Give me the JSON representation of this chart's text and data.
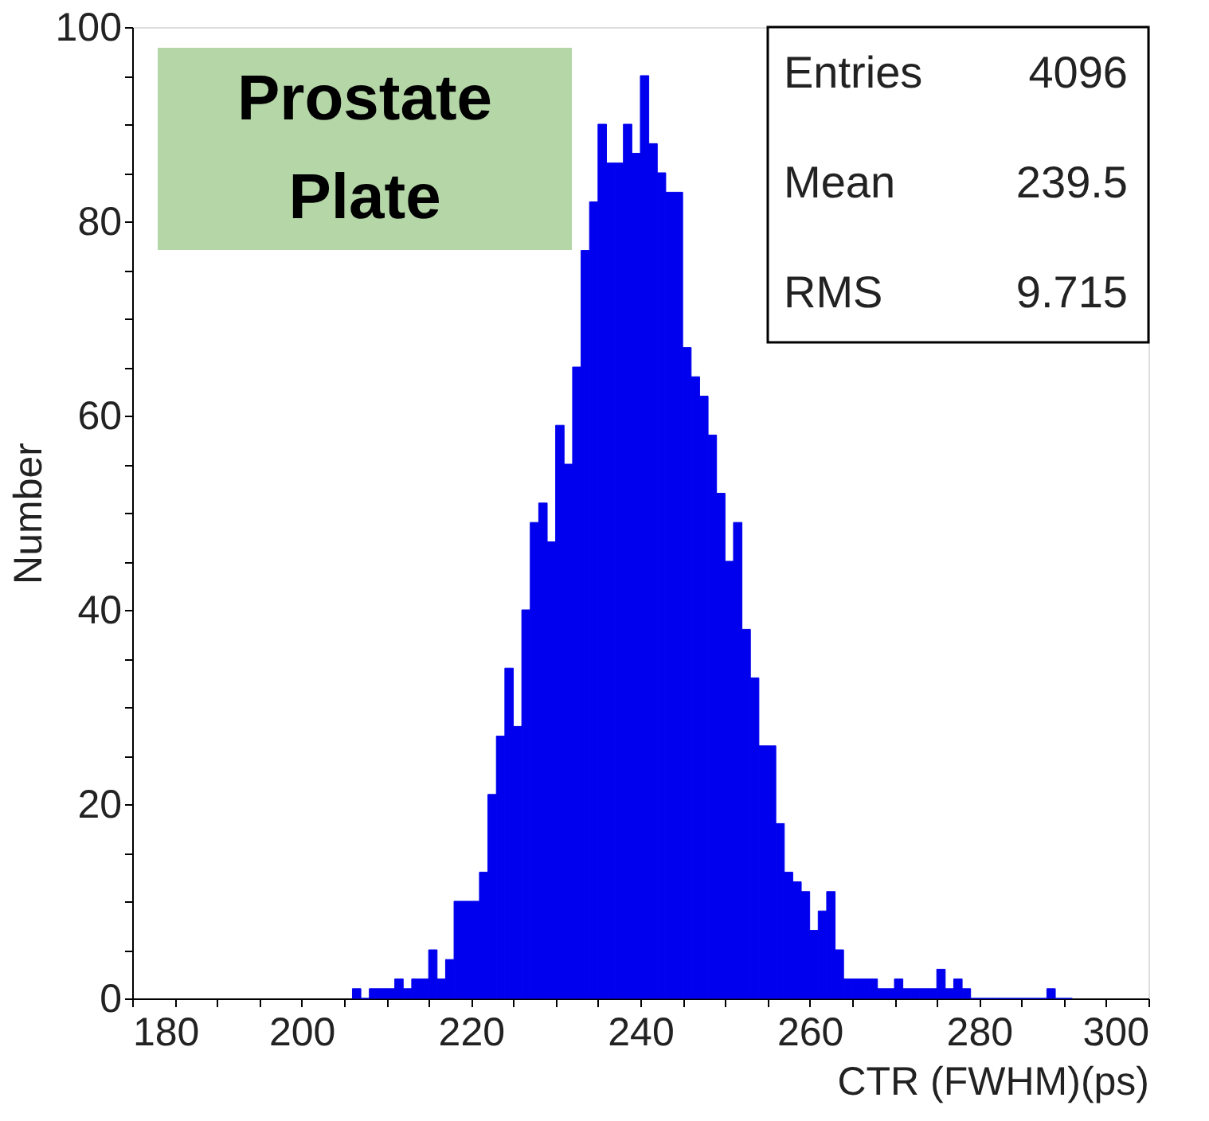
{
  "chart_data": {
    "type": "histogram",
    "xlabel": "CTR (FWHM)(ps)",
    "ylabel": "Number",
    "annotations": [
      "Prostate\nPlate",
      "Entries",
      "4096",
      "Mean",
      "239.5",
      "RMS",
      "9.715"
    ],
    "bins": [
      206,
      207,
      208,
      209,
      210,
      211,
      212,
      213,
      214,
      215,
      216,
      217,
      218,
      219,
      220,
      221,
      222,
      223,
      224,
      225,
      226,
      227,
      228,
      229,
      230,
      231,
      232,
      233,
      234,
      235,
      236,
      237,
      238,
      239,
      240,
      241,
      242,
      243,
      244,
      245,
      246,
      247,
      248,
      249,
      250,
      251,
      252,
      253,
      254,
      255,
      256,
      257,
      258,
      259,
      260,
      261,
      262,
      263,
      264,
      265,
      266,
      267,
      268,
      269,
      270,
      271,
      272,
      273,
      274,
      275,
      276,
      277,
      278,
      279,
      280,
      281,
      282,
      283,
      284,
      285,
      286,
      287,
      288,
      289,
      290,
      291
    ],
    "values": [
      1,
      0,
      1,
      1,
      1,
      2,
      1,
      2,
      2,
      5,
      2,
      4,
      10,
      10,
      10,
      13,
      21,
      27,
      34,
      28,
      40,
      49,
      51,
      47,
      59,
      55,
      65,
      77,
      82,
      90,
      86,
      86,
      90,
      87,
      95,
      88,
      85,
      83,
      83,
      67,
      64,
      62,
      58,
      52,
      45,
      49,
      38,
      33,
      26,
      26,
      18,
      13,
      12,
      11,
      7,
      9,
      11,
      5,
      2,
      2,
      2,
      2,
      1,
      1,
      2,
      1,
      1,
      1,
      1,
      3,
      1,
      2,
      1,
      0,
      0,
      0,
      0,
      0,
      0,
      0,
      0,
      0,
      1,
      0,
      0
    ],
    "color": "#0000ee",
    "xlim": [
      180,
      300
    ],
    "ylim": [
      0,
      100
    ],
    "xticks": [
      180,
      {
        "value": 185,
        "label": null
      },
      {
        "value": 190,
        "label": null
      },
      {
        "value": 195,
        "label": null
      },
      200,
      {
        "value": 205,
        "label": null
      },
      {
        "value": 210,
        "label": null
      },
      {
        "value": 215,
        "label": null
      },
      220,
      {
        "value": 225,
        "label": null
      },
      {
        "value": 230,
        "label": null
      },
      {
        "value": 235,
        "label": null
      },
      240,
      {
        "value": 245,
        "label": null
      },
      {
        "value": 250,
        "label": null
      },
      {
        "value": 255,
        "label": null
      },
      260,
      {
        "value": 265,
        "label": null
      },
      {
        "value": 270,
        "label": null
      },
      {
        "value": 275,
        "label": null
      },
      280,
      {
        "value": 285,
        "label": null
      },
      {
        "value": 290,
        "label": null
      },
      {
        "value": 295,
        "label": null
      },
      300
    ],
    "yticks": [
      0,
      {
        "value": 5,
        "label": null
      },
      {
        "value": 10,
        "label": null
      },
      {
        "value": 15,
        "label": null
      },
      20,
      {
        "value": 25,
        "label": null
      },
      {
        "value": 30,
        "label": null
      },
      {
        "value": 35,
        "label": null
      },
      40,
      {
        "value": 45,
        "label": null
      },
      {
        "value": 50,
        "label": null
      },
      {
        "value": 55,
        "label": null
      },
      60,
      {
        "value": 65,
        "label": null
      },
      {
        "value": 70,
        "label": null
      },
      {
        "value": 75,
        "label": null
      },
      80,
      {
        "value": 85,
        "label": null
      },
      {
        "value": 90,
        "label": null
      },
      {
        "value": 95,
        "label": null
      },
      100
    ],
    "grid": false
  }
}
